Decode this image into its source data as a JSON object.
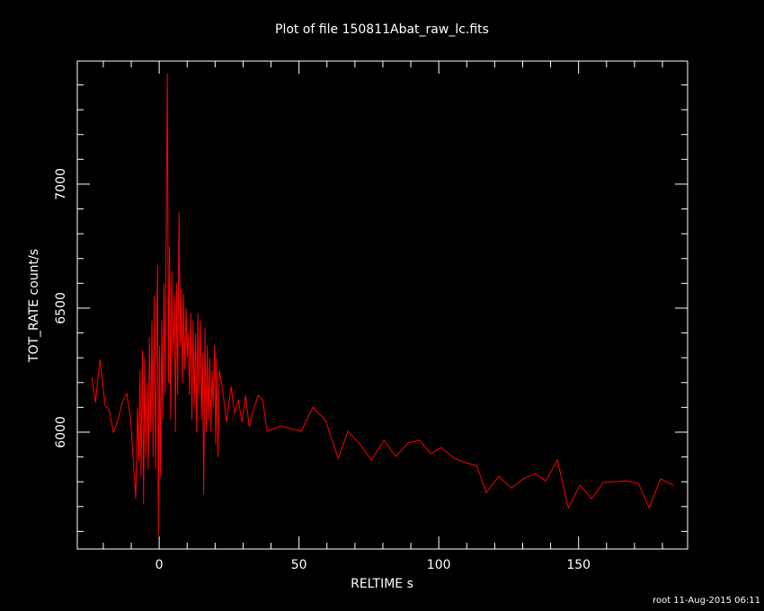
{
  "chart_data": {
    "type": "line",
    "title": "Plot of file 150811Abat_raw_lc.fits",
    "x_label": "RELTIME  s",
    "y_label": "TOT_RATE  count/s",
    "footer": "root 11-Aug-2015 06:11",
    "xlim": [
      -29.3,
      189
    ],
    "ylim": [
      5529,
      7496
    ],
    "xticks": [
      0,
      50,
      100,
      150
    ],
    "yticks": [
      6000,
      6500,
      7000
    ],
    "xminorticks": [
      -20,
      -10,
      10,
      20,
      30,
      40,
      60,
      70,
      80,
      90,
      110,
      120,
      130,
      140,
      160,
      170,
      180
    ],
    "yminorticks": [
      5600,
      5700,
      5800,
      5900,
      6100,
      6200,
      6300,
      6400,
      6600,
      6700,
      6800,
      6900,
      7100,
      7200,
      7300,
      7400
    ],
    "series": [
      {
        "color": "#ff0000",
        "x": [
          -24.1,
          -22.8,
          -21.2,
          -19.3,
          -18,
          -16.4,
          -14.8,
          -13.2,
          -11.6,
          -10.3,
          -9.3,
          -8.4,
          -7.8,
          -7.3,
          -6.9,
          -6.5,
          -6.0,
          -5.6,
          -5.2,
          -4.8,
          -4.3,
          -3.9,
          -3.5,
          -3.0,
          -2.6,
          -2.2,
          -1.8,
          -1.3,
          -0.9,
          -0.6,
          -0.3,
          0.1,
          0.5,
          0.9,
          1.3,
          1.7,
          2.1,
          2.6,
          2.9,
          3.3,
          3.7,
          4.1,
          4.5,
          4.9,
          5.4,
          5.8,
          6.2,
          6.6,
          7.1,
          7.5,
          7.9,
          8.3,
          8.7,
          9.1,
          9.6,
          10.0,
          10.4,
          10.8,
          11.3,
          11.7,
          12.1,
          12.5,
          13.0,
          13.4,
          13.8,
          14.2,
          14.7,
          15.1,
          15.5,
          15.9,
          16.4,
          16.8,
          17.2,
          17.6,
          18.1,
          18.5,
          18.9,
          19.3,
          19.8,
          20.2,
          20.6,
          21.0,
          21.5,
          22.5,
          24.1,
          25.7,
          27,
          28.3,
          29.6,
          30.9,
          32.2,
          33.8,
          35.4,
          37,
          38.6,
          43.4,
          50.8,
          55,
          59.5,
          64,
          67.5,
          71.4,
          75.9,
          80.4,
          84.6,
          89.1,
          93.2,
          97.1,
          100.9,
          105.5,
          109.6,
          113.5,
          117,
          121.5,
          126,
          130.2,
          134.4,
          138.3,
          142.4,
          146.3,
          150.5,
          154.7,
          158.8,
          166.9,
          171.4,
          175.2,
          179.4,
          183.9
        ],
        "values": [
          6221,
          6120,
          6293,
          6105,
          6094,
          6000,
          6047,
          6123,
          6156,
          6058,
          5895,
          5732,
          6100,
          5880,
          6250,
          5820,
          6330,
          5710,
          6300,
          5900,
          6200,
          5850,
          6380,
          6000,
          6450,
          5900,
          6550,
          5850,
          6400,
          6674,
          5580,
          6350,
          5820,
          6450,
          6050,
          6600,
          6150,
          6989,
          7446,
          6200,
          6750,
          6050,
          6650,
          6300,
          6550,
          6000,
          6600,
          6150,
          6888,
          6350,
          6580,
          6200,
          6560,
          6250,
          6500,
          6300,
          6400,
          6150,
          6480,
          6050,
          6450,
          6100,
          6400,
          6000,
          6480,
          6150,
          6450,
          6050,
          6320,
          5750,
          6420,
          6000,
          6350,
          6050,
          6300,
          6000,
          6250,
          6100,
          6350,
          5950,
          6300,
          5900,
          6250,
          6185,
          6040,
          6185,
          6076,
          6130,
          6040,
          6149,
          6022,
          6094,
          6149,
          6130,
          6004,
          6025,
          6004,
          6101,
          6047,
          5895,
          6004,
          5957,
          5888,
          5967,
          5902,
          5957,
          5967,
          5913,
          5938,
          5895,
          5877,
          5866,
          5757,
          5822,
          5775,
          5812,
          5833,
          5804,
          5888,
          5696,
          5786,
          5732,
          5797,
          5804,
          5793,
          5696,
          5812,
          5786
        ]
      }
    ]
  }
}
